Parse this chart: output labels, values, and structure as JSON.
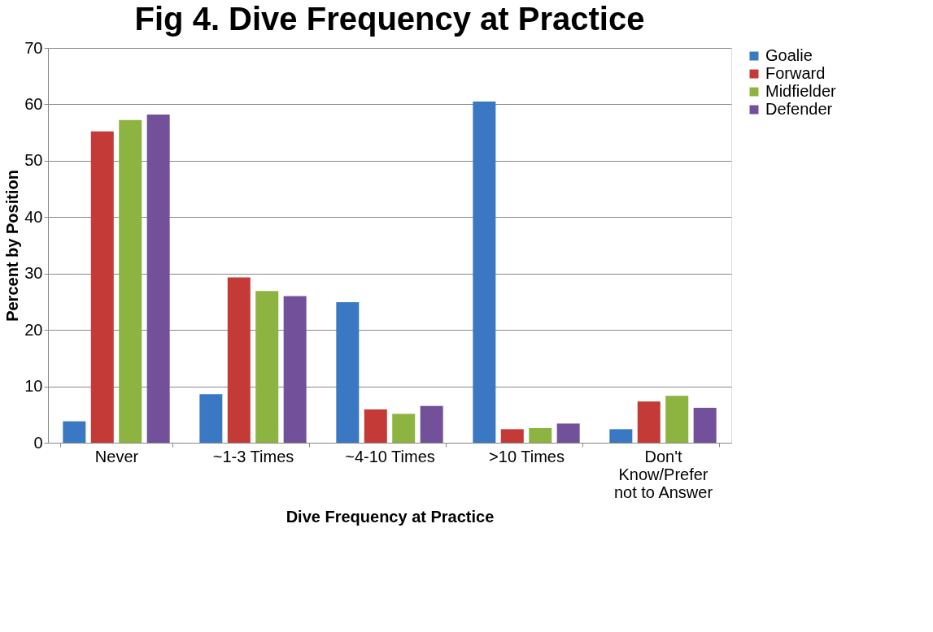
{
  "chart_data": {
    "type": "bar",
    "title": "Fig 4. Dive Frequency at Practice",
    "xlabel": "Dive Frequency at Practice",
    "ylabel": "Percent by Position",
    "categories": [
      "Never",
      "~1-3 Times",
      "~4-10 Times",
      ">10 Times",
      "Don't Know/Prefer not to Answer"
    ],
    "series": [
      {
        "name": "Goalie",
        "color": "#3a78c3",
        "values": [
          3.8,
          8.6,
          24.9,
          60.5,
          2.4
        ]
      },
      {
        "name": "Forward",
        "color": "#c43a37",
        "values": [
          55.2,
          29.3,
          5.9,
          2.4,
          7.3
        ]
      },
      {
        "name": "Midfielder",
        "color": "#8db340",
        "values": [
          57.2,
          26.9,
          5.1,
          2.6,
          8.3
        ]
      },
      {
        "name": "Defender",
        "color": "#72519a",
        "values": [
          58.2,
          26.0,
          6.5,
          3.4,
          6.2
        ]
      }
    ],
    "ylim": [
      0,
      70
    ],
    "yticks": [
      0,
      10,
      20,
      30,
      40,
      50,
      60,
      70
    ],
    "grid": "y",
    "legend": "right"
  }
}
